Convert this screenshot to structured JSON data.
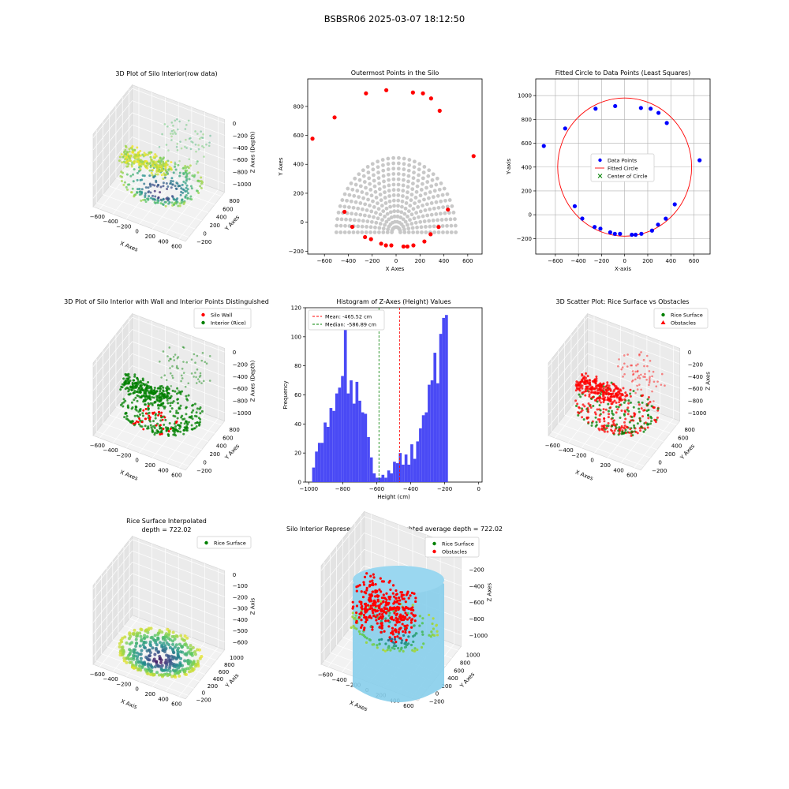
{
  "suptitle": "BSBSR06 2025-03-07 18:12:50",
  "colors": {
    "silo_wall": "#ff0000",
    "interior": "#008000",
    "outer_gray": "#c8c8c8",
    "data_blue": "#0000ff",
    "hist_blue": "#4a4af5",
    "mean_line": "#ff0000",
    "median_line": "#008000",
    "cylinder": "#87ceeb"
  },
  "chart_data": [
    {
      "type": "scatter3d",
      "title": "3D Plot of Silo Interior(row data)",
      "xlabel": "X Axes",
      "ylabel": "Y Axes",
      "zlabel": "Z Axes (Depth)",
      "x_ticks": [
        "-600",
        "-400",
        "-200",
        "0",
        "200",
        "400",
        "600"
      ],
      "y_ticks": [
        "-200",
        "0",
        "200",
        "400",
        "600",
        "800"
      ],
      "z_ticks": [
        "0",
        "-200",
        "-400",
        "-600",
        "-800",
        "-1000"
      ],
      "colormap": "viridis"
    },
    {
      "type": "scatter",
      "title": "Outermost Points in the Silo",
      "xlabel": "X Axes",
      "ylabel": "Y Axes",
      "xlim": [
        -740,
        720
      ],
      "ylim": [
        -220,
        990
      ],
      "x_ticks": [
        -600,
        -400,
        -200,
        0,
        200,
        400,
        600
      ],
      "y_ticks": [
        -200,
        0,
        200,
        400,
        600,
        800
      ],
      "outer_points": [
        [
          -700,
          577
        ],
        [
          -515,
          724
        ],
        [
          -432,
          72
        ],
        [
          -367,
          -32
        ],
        [
          -260,
          -103
        ],
        [
          -210,
          -117
        ],
        [
          -125,
          -148
        ],
        [
          -85,
          -160
        ],
        [
          -40,
          -160
        ],
        [
          62,
          -168
        ],
        [
          95,
          -168
        ],
        [
          145,
          -160
        ],
        [
          237,
          -133
        ],
        [
          289,
          -83
        ],
        [
          356,
          -33
        ],
        [
          434,
          87
        ],
        [
          -252,
          890
        ],
        [
          -82,
          912
        ],
        [
          141,
          896
        ],
        [
          225,
          890
        ],
        [
          293,
          855
        ],
        [
          365,
          770
        ],
        [
          649,
          457
        ]
      ]
    },
    {
      "type": "scatter",
      "title": "Fitted Circle to Data Points (Least Squares)",
      "xlabel": "X-axis",
      "ylabel": "Y-axis",
      "xlim": [
        -770,
        740
      ],
      "ylim": [
        -330,
        1140
      ],
      "x_ticks": [
        -600,
        -400,
        -200,
        0,
        200,
        400,
        600
      ],
      "y_ticks": [
        -200,
        0,
        200,
        400,
        600,
        800,
        1000
      ],
      "legend": [
        "Data Points",
        "Fitted Circle",
        "Center of Circle"
      ],
      "legend_loc": "center",
      "points": [
        [
          -700,
          577
        ],
        [
          -515,
          724
        ],
        [
          -432,
          72
        ],
        [
          -367,
          -32
        ],
        [
          -260,
          -103
        ],
        [
          -210,
          -117
        ],
        [
          -125,
          -148
        ],
        [
          -85,
          -160
        ],
        [
          -40,
          -160
        ],
        [
          62,
          -168
        ],
        [
          95,
          -168
        ],
        [
          145,
          -160
        ],
        [
          237,
          -133
        ],
        [
          289,
          -83
        ],
        [
          356,
          -33
        ],
        [
          434,
          87
        ],
        [
          -252,
          890
        ],
        [
          -82,
          912
        ],
        [
          141,
          896
        ],
        [
          225,
          890
        ],
        [
          293,
          855
        ],
        [
          365,
          770
        ],
        [
          649,
          457
        ]
      ],
      "circle": {
        "cx": 0,
        "cy": 400,
        "r": 580
      },
      "center": [
        0,
        400
      ]
    },
    {
      "type": "scatter3d",
      "title": "3D Plot of Silo Interior with Wall and Interior Points Distinguished",
      "xlabel": "X Axes",
      "ylabel": "Y Axes",
      "zlabel": "Z Axes (Depth)",
      "x_ticks": [
        "-600",
        "-400",
        "-200",
        "0",
        "200",
        "400",
        "600"
      ],
      "y_ticks": [
        "-200",
        "0",
        "200",
        "400",
        "600",
        "800"
      ],
      "z_ticks": [
        "0",
        "-200",
        "-400",
        "-600",
        "-800",
        "-1000"
      ],
      "legend": [
        "Silo Wall",
        "Interior (Rice)"
      ],
      "legend_loc": "upper right"
    },
    {
      "type": "bar",
      "title": "Histogram of Z-Axes (Height) Values",
      "xlabel": "Height (cm)",
      "ylabel": "Frequency",
      "xlim": [
        -1020,
        20
      ],
      "ylim": [
        0,
        120
      ],
      "x_ticks": [
        -1000,
        -800,
        -600,
        -400,
        -200,
        0
      ],
      "y_ticks": [
        0,
        20,
        40,
        60,
        80,
        100,
        120
      ],
      "bin_start": -980,
      "bin_width": 17,
      "values": [
        10,
        21,
        27,
        27,
        41,
        38,
        51,
        49,
        61,
        65,
        73,
        107,
        61,
        70,
        54,
        69,
        56,
        48,
        47,
        31,
        17,
        6,
        3,
        3,
        5,
        3,
        8,
        6,
        14,
        13,
        20,
        12,
        19,
        12,
        26,
        16,
        28,
        37,
        46,
        48,
        67,
        70,
        89,
        68,
        102,
        113,
        115
      ],
      "mean": -465.52,
      "median": -586.89,
      "legend": [
        "Mean: -465.52 cm",
        "Median: -586.89 cm"
      ],
      "legend_loc": "upper left"
    },
    {
      "type": "scatter3d",
      "title": "3D Scatter Plot: Rice Surface vs Obstacles",
      "xlabel": "X Axes",
      "ylabel": "Y Axes",
      "zlabel": "Z Axes",
      "x_ticks": [
        "-600",
        "-400",
        "-200",
        "0",
        "200",
        "400",
        "600"
      ],
      "y_ticks": [
        "-200",
        "0",
        "200",
        "400",
        "600",
        "800"
      ],
      "z_ticks": [
        "0",
        "-200",
        "-400",
        "-600",
        "-800",
        "-1000"
      ],
      "legend": [
        "Rice Surface",
        "Obstacles"
      ],
      "legend_loc": "upper right"
    },
    {
      "type": "surface3d",
      "title": "Rice Surface Interpolated",
      "subtitle": "depth = 722.02",
      "xlabel": "X Axis",
      "ylabel": "Y Axis",
      "zlabel": "Z Axis",
      "x_ticks": [
        "-600",
        "-400",
        "-200",
        "0",
        "200",
        "400",
        "600"
      ],
      "y_ticks": [
        "-200",
        "0",
        "200",
        "400",
        "600",
        "800",
        "1000"
      ],
      "z_ticks": [
        "0",
        "-100",
        "-200",
        "-300",
        "-400",
        "-500",
        "-600"
      ],
      "legend": [
        "Rice Surface"
      ],
      "legend_loc": "upper right"
    },
    {
      "type": "surface3d",
      "title": "Silo Interior Representation using weighted average depth = 722.02",
      "xlabel": "X Axes",
      "ylabel": "Y Axes",
      "zlabel": "Z Axes",
      "x_ticks": [
        "-600",
        "-400",
        "-200",
        "0",
        "200",
        "400",
        "600"
      ],
      "y_ticks": [
        "-200",
        "0",
        "200",
        "400",
        "600",
        "800",
        "1000"
      ],
      "z_ticks": [
        "0",
        "-200",
        "-400",
        "-600",
        "-800",
        "-1000"
      ],
      "legend": [
        "Rice Surface",
        "Obstacles"
      ],
      "legend_loc": "upper right"
    }
  ]
}
